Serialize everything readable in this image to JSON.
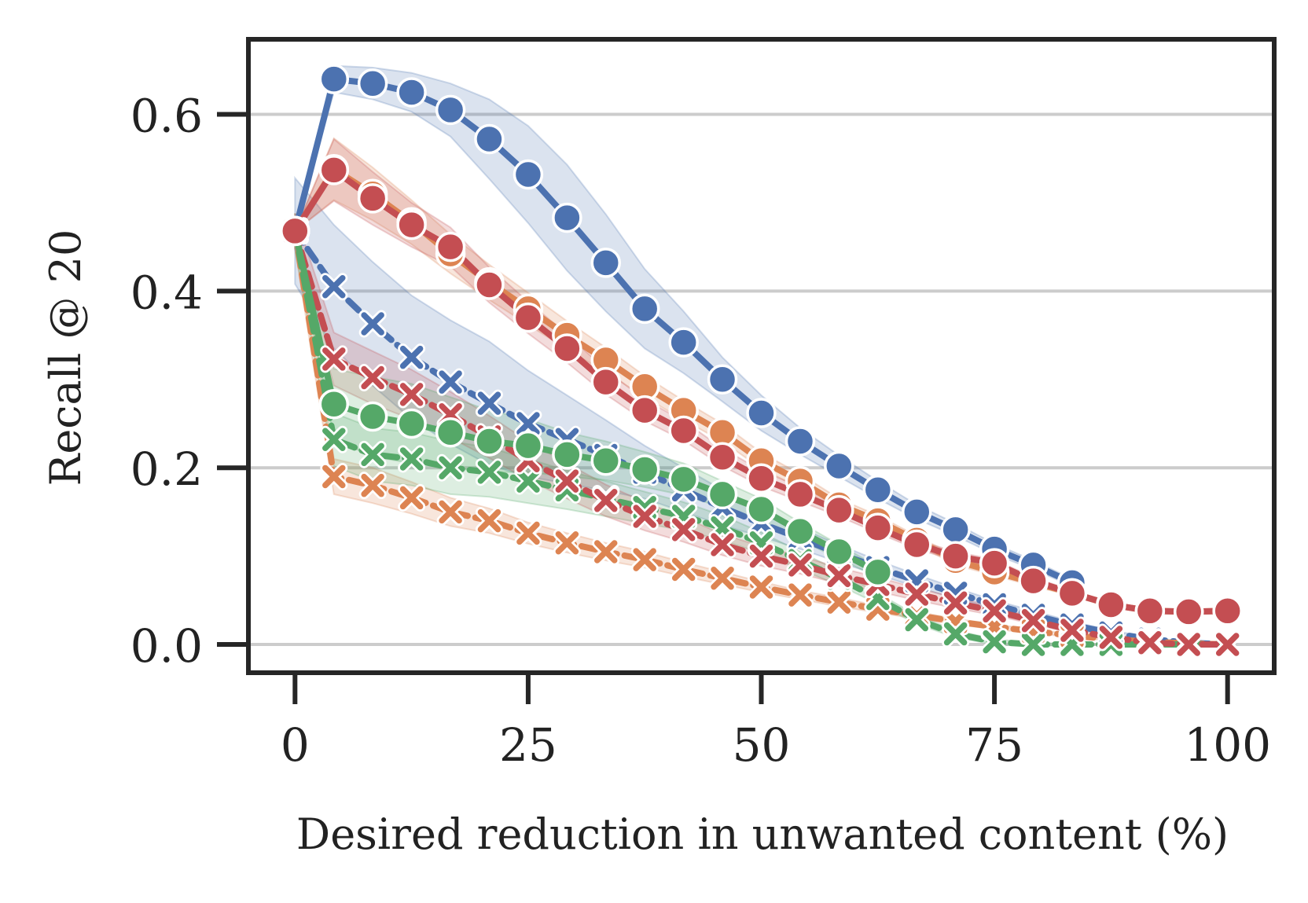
{
  "chart_data": {
    "type": "line",
    "title": "",
    "xlabel": "Desired reduction in unwanted content (%)",
    "ylabel": "Recall @ 20",
    "xlim": [
      -5,
      105
    ],
    "ylim": [
      -0.032,
      0.685
    ],
    "xticks": [
      0,
      25,
      50,
      75,
      100
    ],
    "xtick_labels": [
      "0",
      "25",
      "50",
      "75",
      "100"
    ],
    "yticks": [
      0.0,
      0.2,
      0.4,
      0.6
    ],
    "ytick_labels": [
      "0.0",
      "0.2",
      "0.4",
      "0.6"
    ],
    "grid": "horizontal",
    "colors": {
      "blue": "#4c72b0",
      "orange": "#dd8452",
      "green": "#55a868",
      "red": "#c44e52"
    },
    "x": [
      0,
      4.17,
      8.33,
      12.5,
      16.67,
      20.83,
      25,
      29.17,
      33.33,
      37.5,
      41.67,
      45.83,
      50,
      54.17,
      58.33,
      62.5,
      66.67,
      70.83,
      75,
      79.17,
      83.33,
      87.5,
      91.67,
      95.83,
      100
    ],
    "series": [
      {
        "name": "blue-x",
        "color": "#4c72b0",
        "marker": "x",
        "linestyle": "dashed",
        "values": [
          0.468,
          0.405,
          0.363,
          0.325,
          0.297,
          0.273,
          0.25,
          0.232,
          0.214,
          0.195,
          0.175,
          0.155,
          0.137,
          0.12,
          0.103,
          0.087,
          0.072,
          0.058,
          0.045,
          0.033,
          0.022,
          0.013,
          0.006,
          0.002,
          0.0
        ],
        "band": [
          0.06,
          0.07,
          0.07,
          0.07,
          0.07,
          0.07,
          0.06,
          0.05,
          0.04,
          0.03,
          0.025,
          0.02,
          0.015,
          0.012,
          0.01,
          0.008,
          0.007,
          0.006,
          0.005,
          0.005,
          0.004,
          0.003,
          0.002,
          0.001,
          0.0
        ]
      },
      {
        "name": "orange-x",
        "color": "#dd8452",
        "marker": "x",
        "linestyle": "dashed",
        "values": [
          0.468,
          0.19,
          0.18,
          0.166,
          0.15,
          0.14,
          0.126,
          0.115,
          0.105,
          0.096,
          0.085,
          0.075,
          0.065,
          0.056,
          0.048,
          0.04,
          0.033,
          0.026,
          0.02,
          0.015,
          0.01,
          0.006,
          0.003,
          0.001,
          0.0
        ],
        "band": [
          0.02,
          0.02,
          0.02,
          0.018,
          0.016,
          0.014,
          0.012,
          0.011,
          0.01,
          0.009,
          0.008,
          0.007,
          0.006,
          0.005,
          0.005,
          0.004,
          0.004,
          0.003,
          0.003,
          0.002,
          0.002,
          0.002,
          0.001,
          0.001,
          0.0
        ]
      },
      {
        "name": "green-x",
        "color": "#55a868",
        "marker": "x",
        "linestyle": "dashed",
        "values": [
          0.468,
          0.232,
          0.215,
          0.21,
          0.2,
          0.195,
          0.185,
          0.175,
          0.165,
          0.155,
          0.145,
          0.132,
          0.115,
          0.095,
          0.075,
          0.052,
          0.028,
          0.012,
          0.003,
          0.0,
          0.0,
          0.0,
          0.0,
          0.0,
          0.0
        ],
        "band": [
          0.02,
          0.03,
          0.03,
          0.03,
          0.03,
          0.028,
          0.025,
          0.022,
          0.02,
          0.018,
          0.016,
          0.014,
          0.012,
          0.01,
          0.008,
          0.006,
          0.005,
          0.004,
          0.003,
          0.002,
          0.001,
          0.0,
          0.0,
          0.0,
          0.0
        ]
      },
      {
        "name": "red-x",
        "color": "#c44e52",
        "marker": "x",
        "linestyle": "dashed",
        "values": [
          0.468,
          0.323,
          0.302,
          0.283,
          0.26,
          0.235,
          0.208,
          0.185,
          0.163,
          0.145,
          0.13,
          0.113,
          0.1,
          0.09,
          0.078,
          0.068,
          0.057,
          0.047,
          0.038,
          0.027,
          0.016,
          0.008,
          0.002,
          0.0,
          0.0
        ],
        "band": [
          0.02,
          0.03,
          0.03,
          0.028,
          0.026,
          0.024,
          0.022,
          0.02,
          0.018,
          0.016,
          0.014,
          0.012,
          0.011,
          0.01,
          0.009,
          0.008,
          0.007,
          0.006,
          0.005,
          0.004,
          0.003,
          0.002,
          0.001,
          0.0,
          0.0
        ]
      },
      {
        "name": "blue-o",
        "color": "#4c72b0",
        "marker": "o",
        "linestyle": "solid",
        "values": [
          0.468,
          0.64,
          0.635,
          0.625,
          0.605,
          0.572,
          0.532,
          0.483,
          0.432,
          0.38,
          0.342,
          0.3,
          0.262,
          0.23,
          0.202,
          0.175,
          0.15,
          0.13,
          0.108,
          0.09,
          0.07,
          null,
          null,
          null,
          null
        ],
        "band": [
          0.0,
          0.015,
          0.018,
          0.022,
          0.03,
          0.045,
          0.055,
          0.06,
          0.055,
          0.045,
          0.035,
          0.025,
          0.02,
          0.015,
          0.012,
          0.01,
          0.008,
          0.007,
          0.006,
          0.005,
          0.004,
          0.0,
          0.0,
          0.0,
          0.0
        ]
      },
      {
        "name": "orange-o",
        "color": "#dd8452",
        "marker": "o",
        "linestyle": "solid",
        "values": [
          0.468,
          0.538,
          0.51,
          0.478,
          0.442,
          0.41,
          0.38,
          0.35,
          0.322,
          0.292,
          0.265,
          0.24,
          0.208,
          0.185,
          0.158,
          0.14,
          0.118,
          0.095,
          0.082,
          0.07,
          0.058,
          0.045,
          0.038,
          0.037,
          0.038
        ],
        "band": [
          0.0,
          0.035,
          0.03,
          0.025,
          0.022,
          0.02,
          0.018,
          0.016,
          0.014,
          0.012,
          0.011,
          0.01,
          0.009,
          0.008,
          0.007,
          0.006,
          0.005,
          0.005,
          0.004,
          0.004,
          0.003,
          0.003,
          0.002,
          0.002,
          0.002
        ]
      },
      {
        "name": "green-o",
        "color": "#55a868",
        "marker": "o",
        "linestyle": "solid",
        "values": [
          0.468,
          0.272,
          0.258,
          0.25,
          0.24,
          0.23,
          0.225,
          0.215,
          0.208,
          0.198,
          0.187,
          0.17,
          0.153,
          0.128,
          0.105,
          0.082,
          null,
          null,
          null,
          null,
          null,
          null,
          null,
          null,
          null
        ],
        "band": [
          0.0,
          0.04,
          0.045,
          0.045,
          0.04,
          0.035,
          0.03,
          0.025,
          0.022,
          0.02,
          0.018,
          0.015,
          0.012,
          0.01,
          0.008,
          0.006,
          0.0,
          0.0,
          0.0,
          0.0,
          0.0,
          0.0,
          0.0,
          0.0,
          0.0
        ]
      },
      {
        "name": "red-o",
        "color": "#c44e52",
        "marker": "o",
        "linestyle": "solid",
        "values": [
          0.468,
          0.537,
          0.505,
          0.475,
          0.45,
          0.407,
          0.37,
          0.335,
          0.297,
          0.265,
          0.242,
          0.212,
          0.188,
          0.17,
          0.152,
          0.132,
          0.113,
          0.1,
          0.092,
          0.072,
          0.058,
          0.045,
          0.038,
          0.037,
          0.038
        ],
        "band": [
          0.0,
          0.035,
          0.03,
          0.025,
          0.022,
          0.02,
          0.018,
          0.016,
          0.014,
          0.012,
          0.011,
          0.01,
          0.009,
          0.008,
          0.007,
          0.006,
          0.005,
          0.005,
          0.004,
          0.004,
          0.003,
          0.003,
          0.002,
          0.002,
          0.002
        ]
      }
    ]
  }
}
